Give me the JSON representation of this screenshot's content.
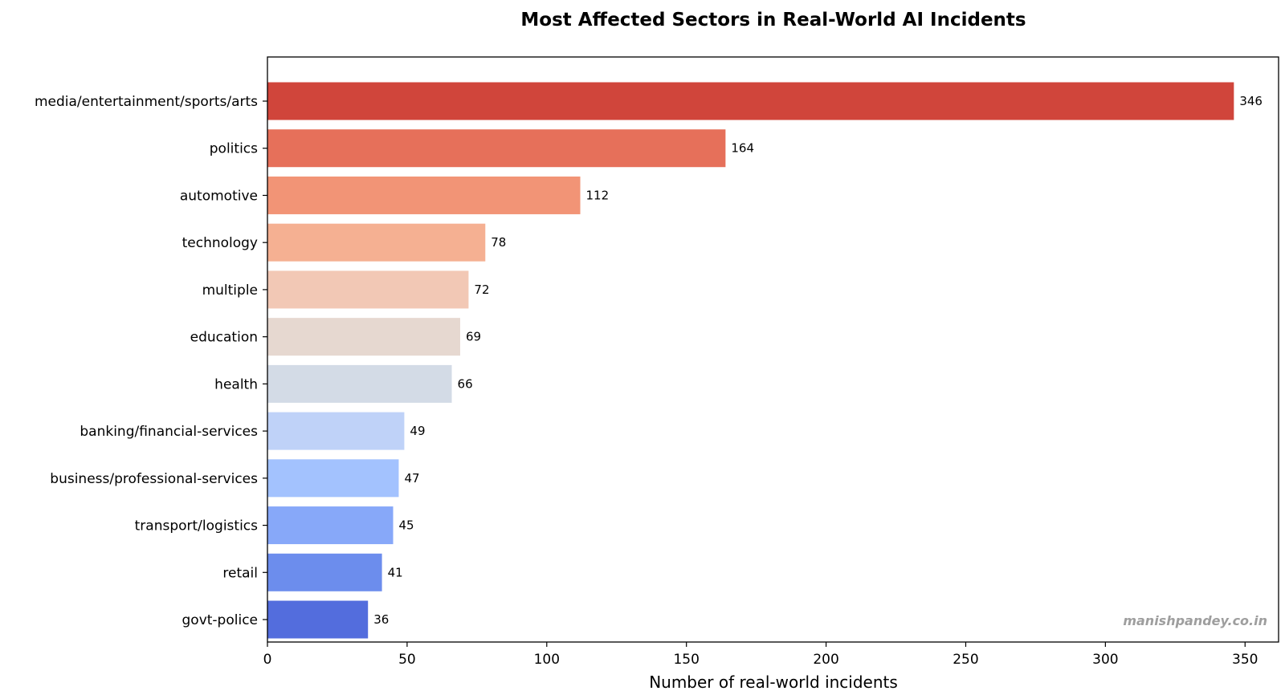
{
  "chart_data": {
    "type": "bar",
    "orientation": "horizontal",
    "title": "Most Affected Sectors in Real-World AI Incidents",
    "xlabel": "Number of real-world incidents",
    "ylabel": "",
    "xlim": [
      0,
      362
    ],
    "xticks": [
      0,
      50,
      100,
      150,
      200,
      250,
      300,
      350
    ],
    "grid": false,
    "categories": [
      "media/entertainment/sports/arts",
      "politics",
      "automotive",
      "technology",
      "multiple",
      "education",
      "health",
      "banking/financial-services",
      "business/professional-services",
      "transport/logistics",
      "retail",
      "govt-police"
    ],
    "values": [
      346,
      164,
      112,
      78,
      72,
      69,
      66,
      49,
      47,
      45,
      41,
      36
    ],
    "value_labels": [
      "346",
      "164",
      "112",
      "78",
      "72",
      "69",
      "66",
      "49",
      "47",
      "45",
      "41",
      "36"
    ],
    "colors": [
      "#d0453b",
      "#e6705a",
      "#f29476",
      "#f5b092",
      "#f2c8b5",
      "#e6d8d0",
      "#d3dbe6",
      "#bfd2f8",
      "#a3c2fe",
      "#87a8f9",
      "#6c8ded",
      "#536ddd"
    ],
    "watermark": "manishpandey.co.in"
  }
}
